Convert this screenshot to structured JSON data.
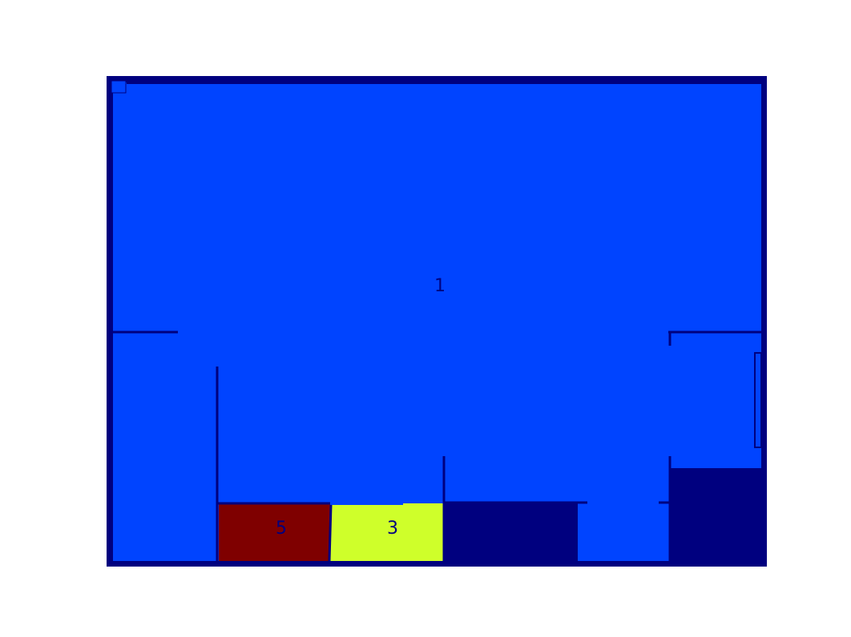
{
  "colors": {
    "wall": "#00007f",
    "room_1": "#0044ff",
    "room_5": "#7f0000",
    "room_3": "#cfff2a",
    "dark_region": "#00007f",
    "background": "#ffffff"
  },
  "rooms": [
    {
      "id": "room-1",
      "label": "1",
      "color_key": "room_1"
    },
    {
      "id": "room-5",
      "label": "5",
      "color_key": "room_5"
    },
    {
      "id": "room-3",
      "label": "3",
      "color_key": "room_3"
    }
  ]
}
